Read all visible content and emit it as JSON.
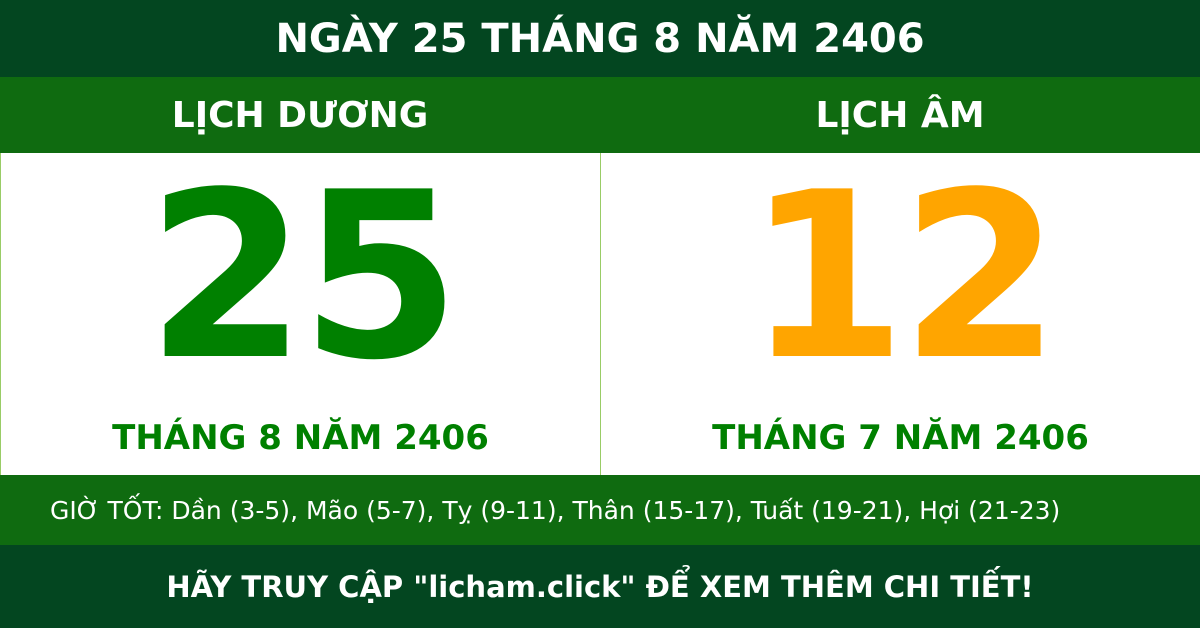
{
  "title": "NGÀY 25 THÁNG 8 NĂM 2406",
  "solar": {
    "label": "LỊCH DƯƠNG",
    "day": "25",
    "month_year": "THÁNG 8 NĂM 2406",
    "color": "#008000"
  },
  "lunar": {
    "label": "LỊCH ÂM",
    "day": "12",
    "month_year": "THÁNG 7 NĂM 2406",
    "color": "#ffa500"
  },
  "good_hours": "GIỜ TỐT: Dần (3-5), Mão (5-7), Tỵ (9-11), Thân (15-17), Tuất (19-21), Hợi (21-23)",
  "footer": "HÃY TRUY CẬP \"licham.click\" ĐỂ XEM THÊM CHI TIẾT!"
}
